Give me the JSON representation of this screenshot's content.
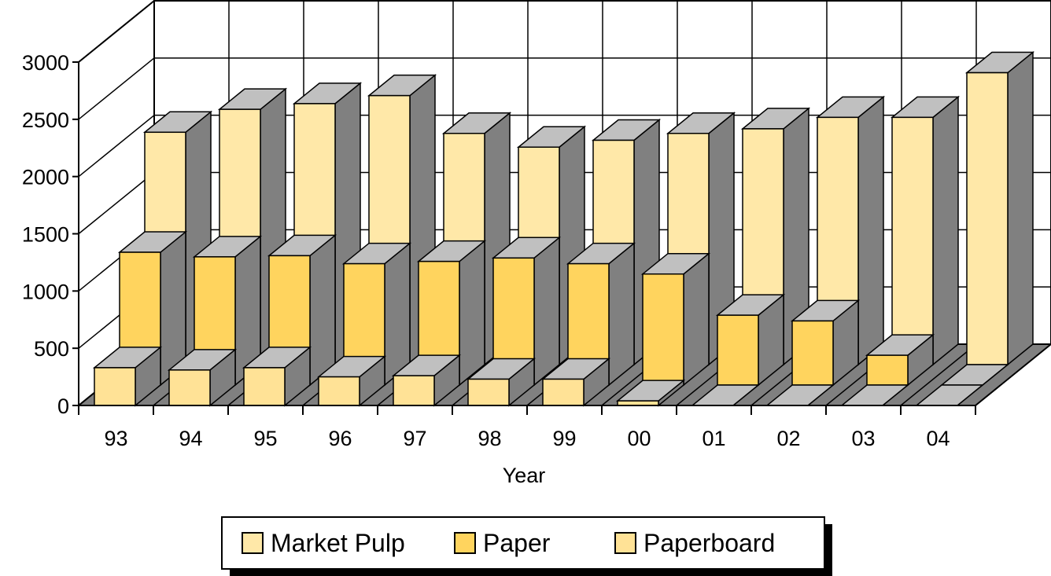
{
  "chart_data": {
    "type": "bar",
    "categories": [
      "93",
      "94",
      "95",
      "96",
      "97",
      "98",
      "99",
      "00",
      "01",
      "02",
      "03",
      "04"
    ],
    "series": [
      {
        "name": "Market Pulp",
        "values": [
          2030,
          2230,
          2280,
          2350,
          2020,
          1900,
          1960,
          2020,
          2060,
          2160,
          2160,
          2550
        ]
      },
      {
        "name": "Paper",
        "values": [
          1160,
          1120,
          1130,
          1060,
          1080,
          1110,
          1060,
          970,
          610,
          560,
          260,
          0
        ]
      },
      {
        "name": "Paperboard",
        "values": [
          330,
          310,
          330,
          250,
          260,
          230,
          230,
          40,
          0,
          0,
          0,
          0
        ]
      }
    ],
    "xlabel": "Year",
    "ylabel": "",
    "yticks": [
      0,
      500,
      1000,
      1500,
      2000,
      2500,
      3000
    ],
    "ylim": [
      0,
      3000
    ],
    "legend": "bottom-center",
    "grid": true
  },
  "colors": {
    "market_pulp": "#FFE8A8",
    "paper": "#FFD45E",
    "paperboard": "#FFE296",
    "bar_top": "#C0C0C0",
    "bar_side": "#808080",
    "floor": "#808080"
  }
}
